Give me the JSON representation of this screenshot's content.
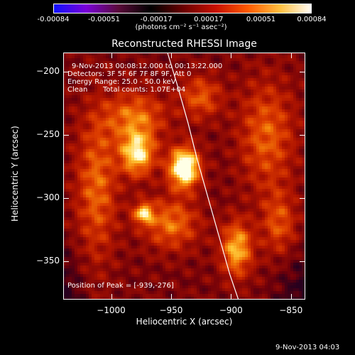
{
  "colorbar": {
    "tick_labels": [
      "-0.00084",
      "-0.00051",
      "-0.00017",
      "0.00017",
      "0.00051",
      "0.00084"
    ],
    "unit_label": "(photons cm⁻² s⁻¹ asec⁻²)",
    "range": [
      -0.00084,
      0.00084
    ],
    "colors": [
      "#1010ff",
      "#7a00d8",
      "#5a0a3a",
      "#000000",
      "#6a0000",
      "#c81000",
      "#ff5a00",
      "#ffc040",
      "#ffffff"
    ]
  },
  "chart_data": {
    "type": "heatmap",
    "title": "Reconstructed RHESSI Image",
    "xlabel": "Heliocentric X (arcsec)",
    "ylabel": "Heliocentric Y (arcsec)",
    "xlim": [
      -1040,
      -838
    ],
    "ylim": [
      -380,
      -185
    ],
    "x_ticks": [
      -1000,
      -950,
      -900,
      -850
    ],
    "y_ticks": [
      -200,
      -250,
      -300,
      -350
    ],
    "x_tick_labels": [
      "−1000",
      "−950",
      "−900",
      "−850"
    ],
    "y_tick_labels": [
      "−200",
      "−250",
      "−300",
      "−350"
    ],
    "peak": [
      -939,
      -276
    ],
    "sources": [
      {
        "x": -939,
        "y": -276,
        "sx": 9,
        "sy": 11,
        "amp": 1.0
      },
      {
        "x": -978,
        "y": -265,
        "sx": 10,
        "sy": 12,
        "amp": 0.72
      },
      {
        "x": -973,
        "y": -312,
        "sx": 6,
        "sy": 6,
        "amp": 0.6
      },
      {
        "x": -895,
        "y": -340,
        "sx": 9,
        "sy": 15,
        "amp": 0.62
      },
      {
        "x": -980,
        "y": -236,
        "sx": 18,
        "sy": 14,
        "amp": 0.45
      },
      {
        "x": -950,
        "y": -320,
        "sx": 16,
        "sy": 14,
        "amp": 0.45
      },
      {
        "x": -870,
        "y": -250,
        "sx": 16,
        "sy": 30,
        "amp": 0.4
      },
      {
        "x": -1012,
        "y": -290,
        "sx": 12,
        "sy": 40,
        "amp": 0.42
      },
      {
        "x": -925,
        "y": -220,
        "sx": 12,
        "sy": 12,
        "amp": 0.38
      },
      {
        "x": -860,
        "y": -320,
        "sx": 10,
        "sy": 18,
        "amp": 0.35
      }
    ],
    "limb_x": [
      -953,
      -945,
      -936,
      -928,
      -919,
      -910,
      -901,
      -892
    ],
    "limb_y": [
      -185,
      -210,
      -240,
      -270,
      -300,
      -330,
      -360,
      -385
    ]
  },
  "info": {
    "time_range": "9-Nov-2013 00:08:12.000 to 00:13:22.000",
    "detectors": "Detectors: 3F 5F 6F 7F 8F 9F, Att 0",
    "energy": "Energy Range: 25.0 - 50.0 keV",
    "method": "Clean",
    "counts": "Total counts: 1.07E+04",
    "peak_label": "Position of Peak = [-939,-276]"
  },
  "footer": {
    "timestamp": "9-Nov-2013 04:03"
  }
}
